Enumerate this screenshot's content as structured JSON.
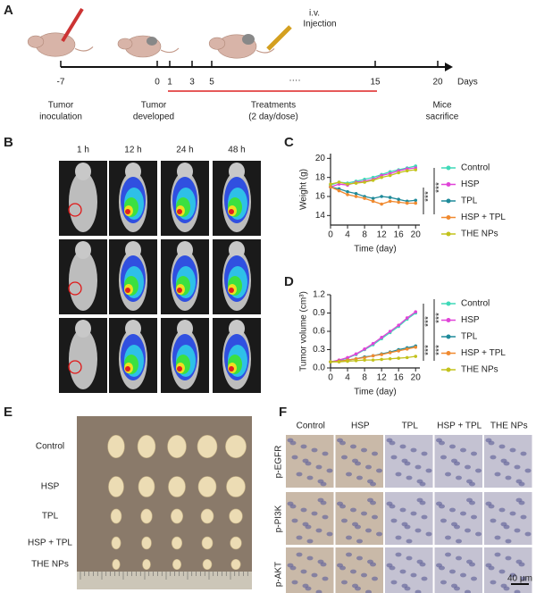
{
  "panel_labels": [
    "A",
    "B",
    "C",
    "D",
    "E",
    "F"
  ],
  "timeline": {
    "injection": [
      "i.v.",
      "Injection"
    ],
    "days": [
      -7,
      0,
      1,
      3,
      5,
      15,
      20
    ],
    "ellipsis": "····",
    "unit": "Days",
    "events": [
      [
        "Tumor",
        "inoculation"
      ],
      [
        "Tumor",
        "developed"
      ],
      [
        "Mice",
        "sacrifice"
      ]
    ],
    "treatment": [
      "Treatments",
      "(2 day/dose)"
    ]
  },
  "imaging": {
    "times": [
      "1 h",
      "12 h",
      "24 h",
      "48 h"
    ]
  },
  "chart_data": [
    {
      "type": "line",
      "xlabel": "Time (day)",
      "ylabel": "Weight (g)",
      "x": [
        0,
        2,
        4,
        6,
        8,
        10,
        12,
        14,
        16,
        18,
        20
      ],
      "xlim": [
        0,
        21
      ],
      "xticks": [
        0,
        4,
        8,
        12,
        16,
        20
      ],
      "ylim": [
        13,
        20.5
      ],
      "yticks": [
        14,
        16,
        18,
        20
      ],
      "series": [
        {
          "name": "Control",
          "color": "#3fd9b8",
          "values": [
            17.2,
            17.5,
            17.4,
            17.6,
            17.8,
            18.0,
            18.3,
            18.6,
            18.8,
            19.0,
            19.2
          ]
        },
        {
          "name": "HSP",
          "color": "#e044d8",
          "values": [
            17.0,
            17.3,
            17.2,
            17.5,
            17.6,
            17.8,
            18.2,
            18.4,
            18.7,
            18.9,
            19.0
          ]
        },
        {
          "name": "TPL",
          "color": "#1f8a9a",
          "values": [
            17.0,
            16.8,
            16.5,
            16.3,
            16.0,
            15.8,
            16.0,
            15.9,
            15.7,
            15.5,
            15.6
          ]
        },
        {
          "name": "HSP + TPL",
          "color": "#f08a30",
          "values": [
            17.0,
            16.6,
            16.2,
            16.0,
            15.8,
            15.5,
            15.2,
            15.5,
            15.4,
            15.3,
            15.3
          ]
        },
        {
          "name": "THE NPs",
          "color": "#c3c21c",
          "values": [
            17.3,
            17.5,
            17.3,
            17.4,
            17.5,
            17.7,
            18.0,
            18.2,
            18.5,
            18.7,
            18.8
          ]
        }
      ],
      "annotations": [
        "***",
        "***"
      ]
    },
    {
      "type": "line",
      "xlabel": "Time (day)",
      "ylabel": "Tumor volume (cm³)",
      "x": [
        0,
        2,
        4,
        6,
        8,
        10,
        12,
        14,
        16,
        18,
        20
      ],
      "xlim": [
        0,
        21
      ],
      "xticks": [
        0,
        4,
        8,
        12,
        16,
        20
      ],
      "ylim": [
        0,
        1.2
      ],
      "yticks": [
        {
          "value": 0,
          "label": "0.0"
        },
        0.3,
        0.6,
        0.9,
        1.2
      ],
      "series": [
        {
          "name": "Control",
          "color": "#3fd9b8",
          "values": [
            0.1,
            0.12,
            0.16,
            0.22,
            0.3,
            0.38,
            0.48,
            0.58,
            0.68,
            0.8,
            0.9
          ]
        },
        {
          "name": "HSP",
          "color": "#e044d8",
          "values": [
            0.1,
            0.13,
            0.17,
            0.23,
            0.31,
            0.4,
            0.5,
            0.6,
            0.7,
            0.82,
            0.92
          ]
        },
        {
          "name": "TPL",
          "color": "#1f8a9a",
          "values": [
            0.1,
            0.11,
            0.13,
            0.15,
            0.18,
            0.2,
            0.23,
            0.26,
            0.3,
            0.33,
            0.36
          ]
        },
        {
          "name": "HSP + TPL",
          "color": "#f08a30",
          "values": [
            0.1,
            0.11,
            0.13,
            0.15,
            0.17,
            0.2,
            0.22,
            0.25,
            0.28,
            0.31,
            0.34
          ]
        },
        {
          "name": "THE NPs",
          "color": "#c3c21c",
          "values": [
            0.1,
            0.1,
            0.11,
            0.12,
            0.13,
            0.13,
            0.14,
            0.15,
            0.16,
            0.17,
            0.19
          ]
        }
      ],
      "annotations": [
        "***",
        "***",
        "***",
        "***"
      ]
    }
  ],
  "tumors": {
    "groups": [
      "Control",
      "HSP",
      "TPL",
      "HSP + TPL",
      "THE NPs"
    ]
  },
  "ihc": {
    "groups": [
      "Control",
      "HSP",
      "TPL",
      "HSP + TPL",
      "THE NPs"
    ],
    "markers": [
      "p-EGFR",
      "p-PI3K",
      "p-AKT"
    ],
    "scale_bar": "40 μm"
  }
}
